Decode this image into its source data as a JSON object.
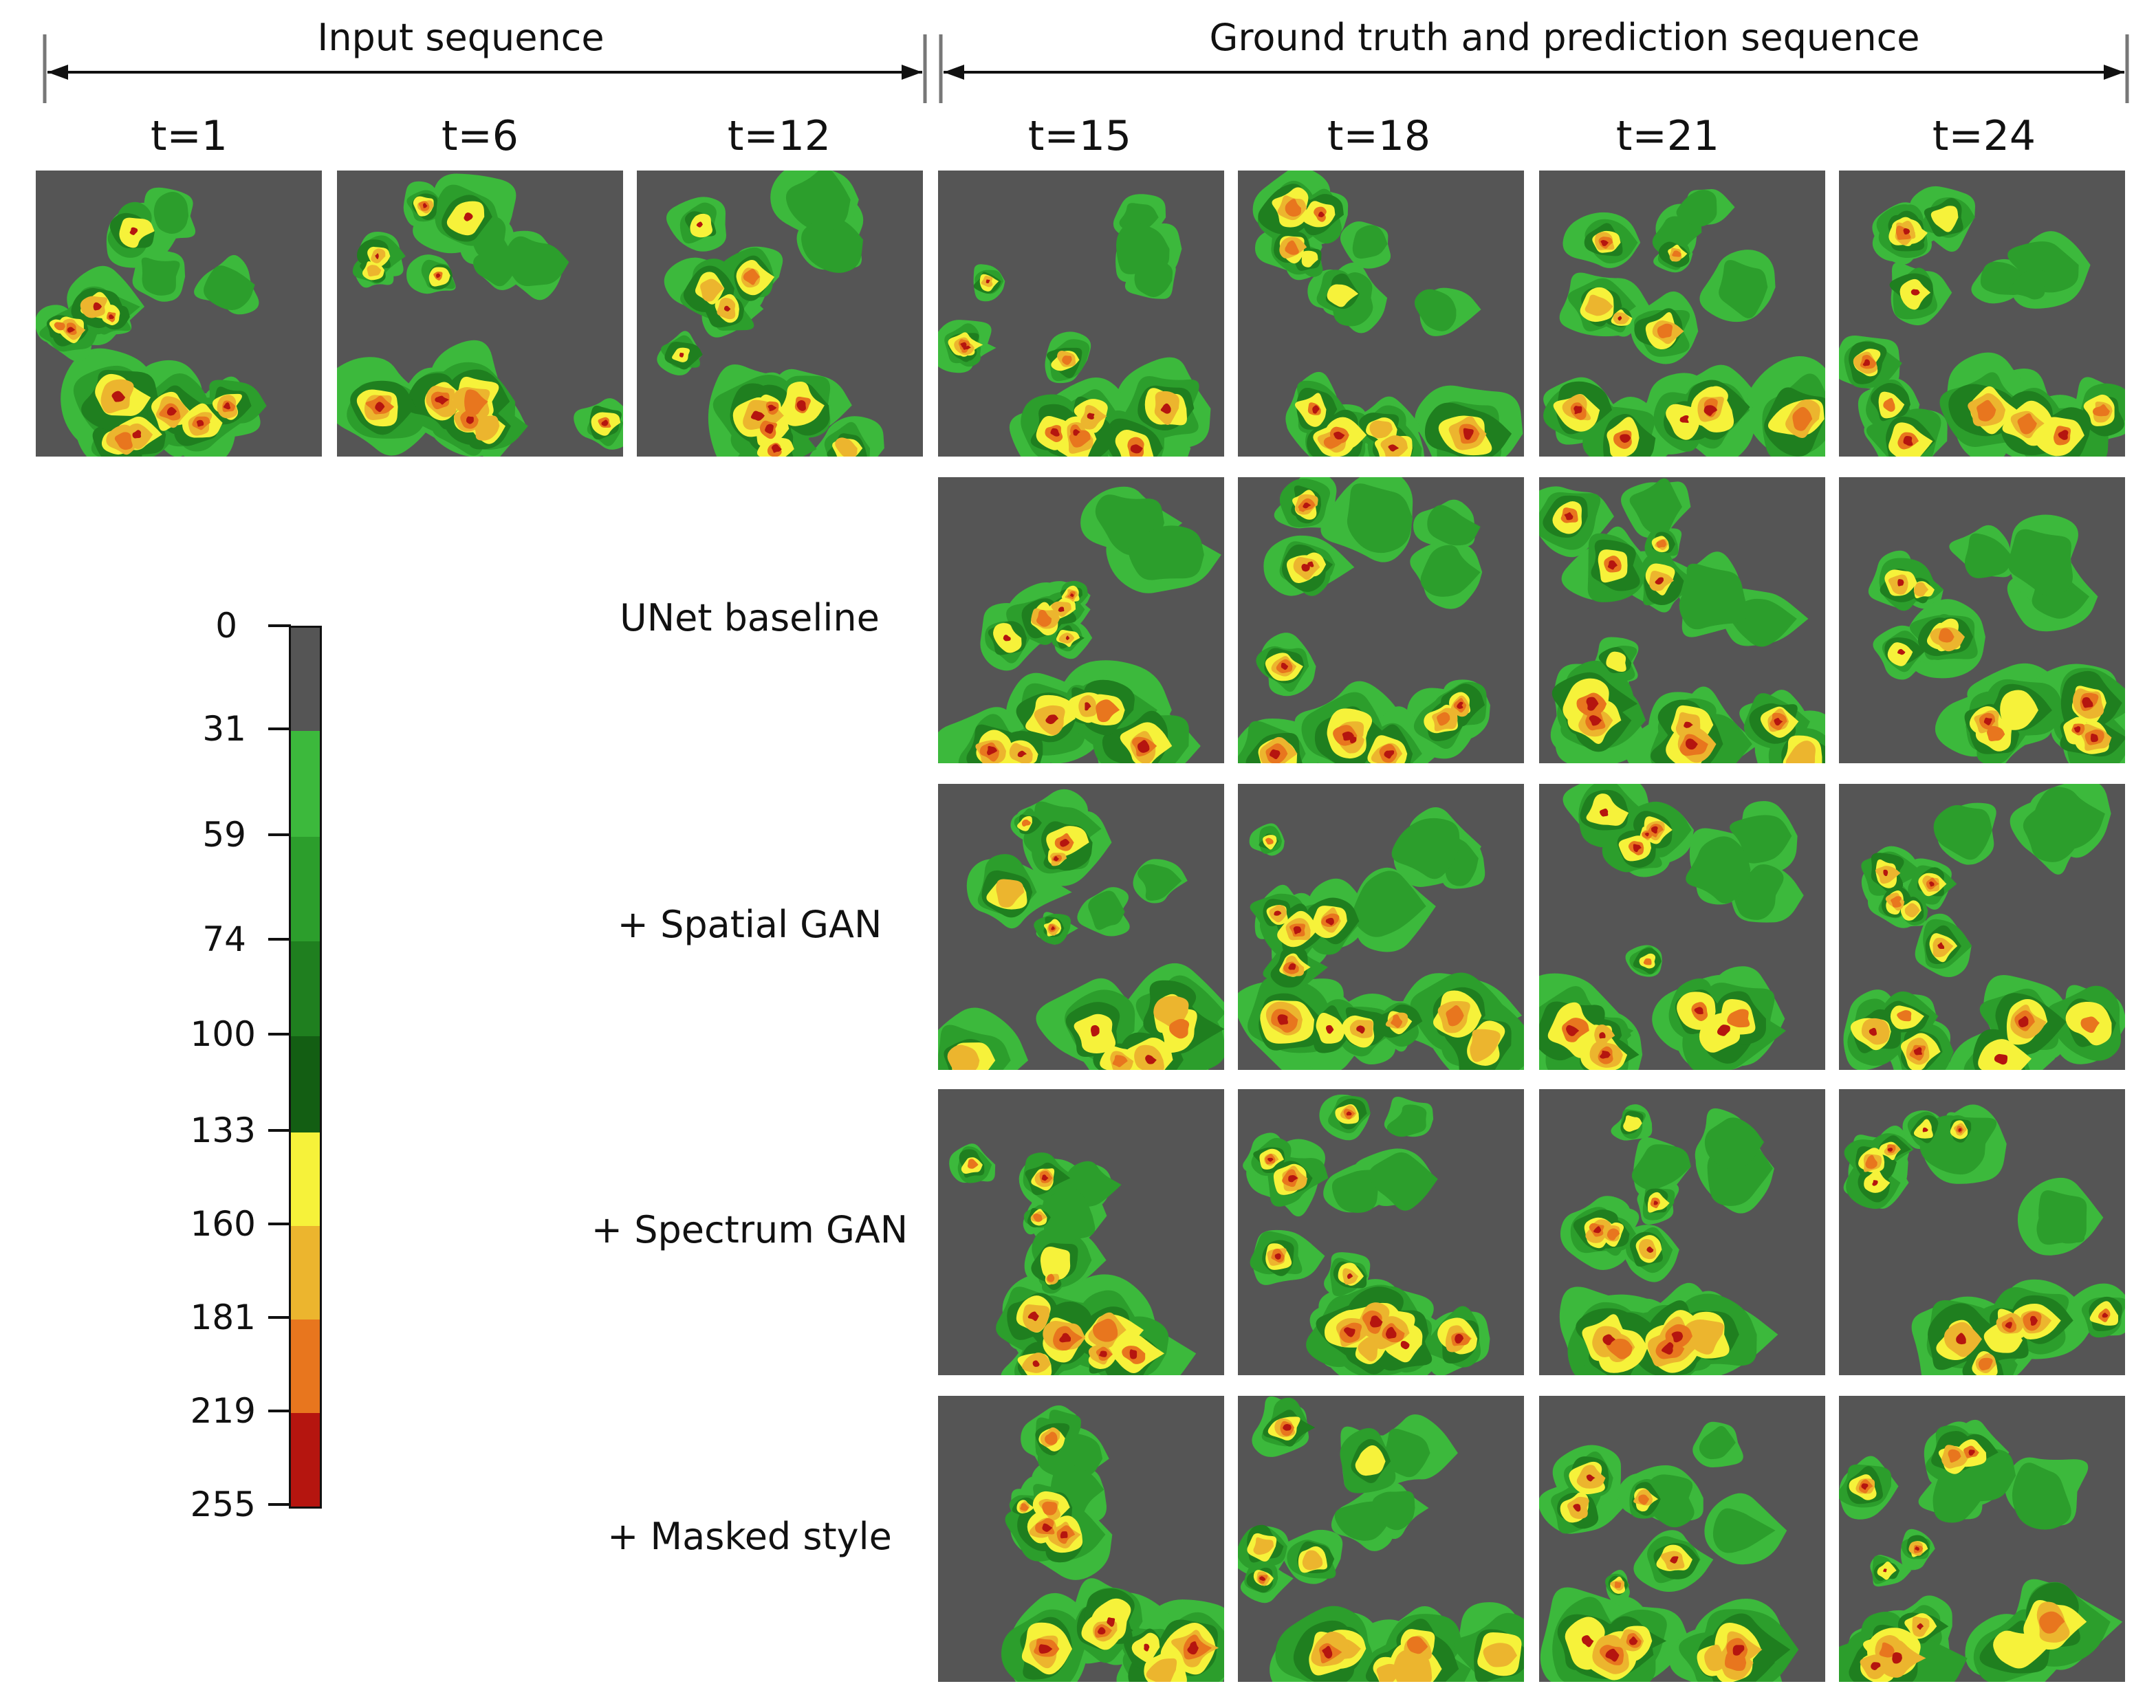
{
  "headers": {
    "input": "Input sequence",
    "prediction": "Ground truth and prediction sequence"
  },
  "time_labels": [
    "t=1",
    "t=6",
    "t=12",
    "t=15",
    "t=18",
    "t=21",
    "t=24"
  ],
  "row_labels": [
    "UNet baseline",
    "+ Spatial GAN",
    "+ Spectrum GAN",
    "+ Masked style"
  ],
  "colorbar": {
    "ticks": [
      "0",
      "31",
      "59",
      "74",
      "100",
      "133",
      "160",
      "181",
      "219",
      "255"
    ],
    "colors": [
      "#555555",
      "#3cb93c",
      "#2c9e2c",
      "#1f7f1f",
      "#135e13",
      "#f6f23a",
      "#ecb52e",
      "#e8761e",
      "#b5150f"
    ]
  }
}
